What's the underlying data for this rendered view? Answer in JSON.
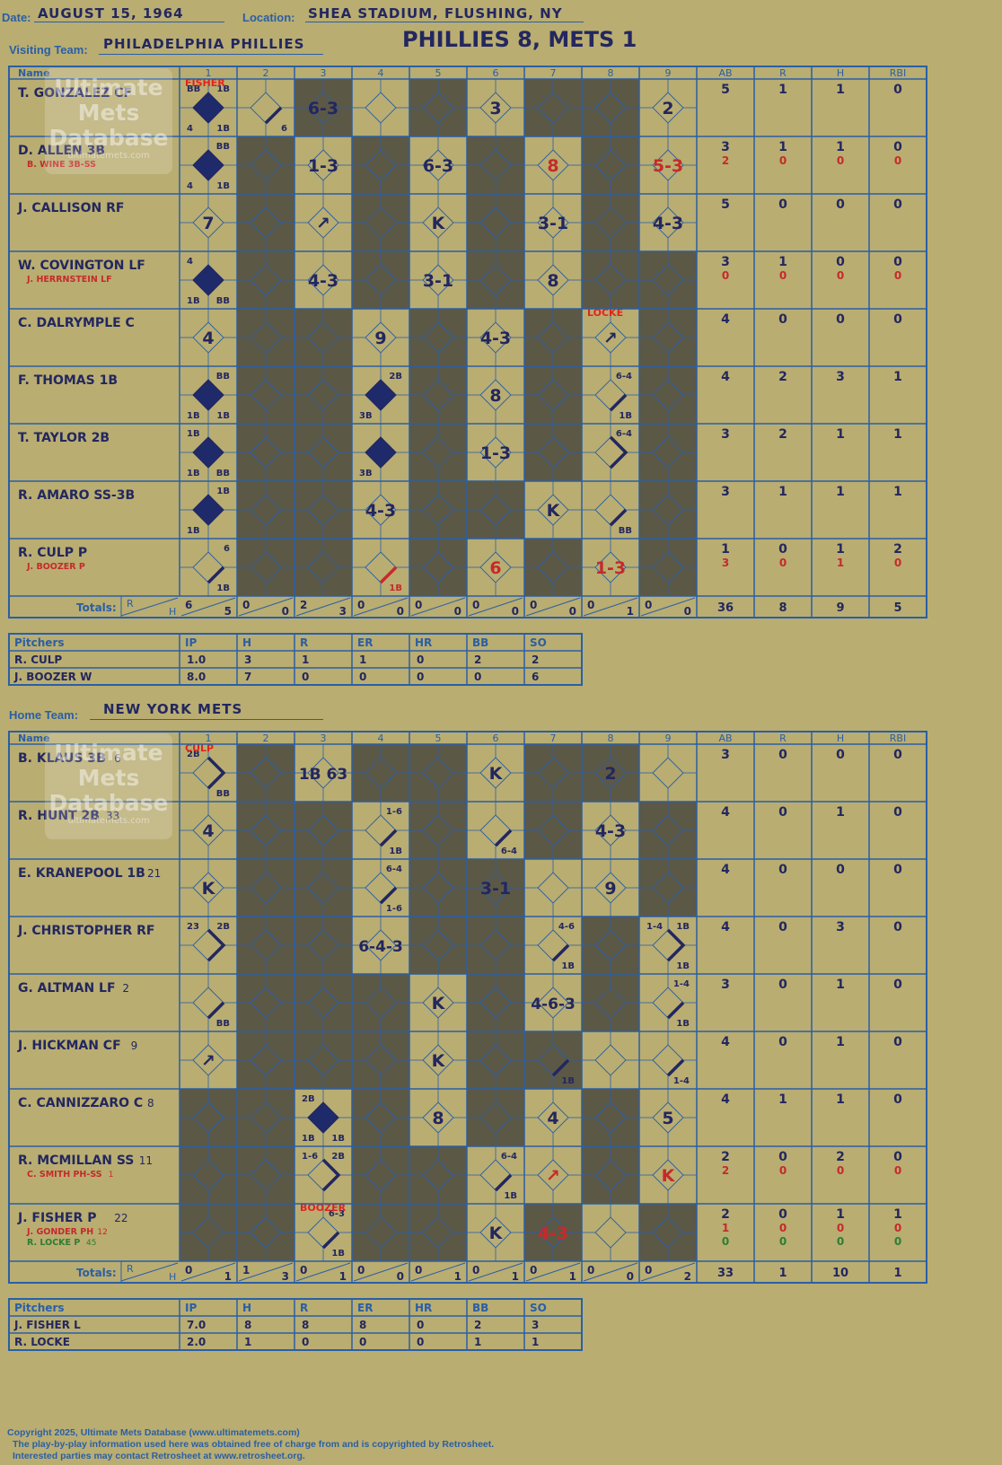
{
  "header": {
    "date_label": "Date:",
    "date": "AUGUST 15, 1964",
    "location_label": "Location:",
    "location": "SHEA STADIUM, FLUSHING, NY",
    "visiting_label": "Visiting Team:",
    "visiting_team": "PHILADELPHIA PHILLIES",
    "result": "PHILLIES 8, METS 1",
    "home_label": "Home Team:",
    "home_team": "NEW YORK METS"
  },
  "columns": {
    "name": "Name",
    "innings": [
      "1",
      "2",
      "3",
      "4",
      "5",
      "6",
      "7",
      "8",
      "9"
    ],
    "stats": [
      "AB",
      "R",
      "H",
      "RBI"
    ]
  },
  "pitcher_columns": [
    "Pitchers",
    "IP",
    "H",
    "R",
    "ER",
    "HR",
    "BB",
    "SO"
  ],
  "totals_label": "Totals:",
  "totals_r": "R",
  "totals_h": "H",
  "watermark": {
    "line1": "Ultimate",
    "line2": "Mets",
    "line3": "Database",
    "line4": "ultimatemets.com"
  },
  "colors": {
    "background": "#b9ad72",
    "grid": "#2a5fa5",
    "shade": "#5c5846",
    "ink": "#23275f",
    "red": "#c62a2a",
    "green": "#2e7d32"
  },
  "visitors": {
    "pitcher_changes": [
      {
        "inning": 1,
        "row": 0,
        "text": "FISHER"
      },
      {
        "inning": 8,
        "row": 4,
        "text": "LOCKE"
      }
    ],
    "batters": [
      {
        "name": "T. GONZALEZ CF",
        "subs": [],
        "stats": [
          [
            "5",
            "1",
            "1",
            "0"
          ]
        ],
        "cells": [
          {
            "inning": 1,
            "runner": 4,
            "marks": {
              "tl": "BB",
              "tr": "1B",
              "bl": "4",
              "br": "1B"
            }
          },
          {
            "inning": 2,
            "runner": 1,
            "marks": {
              "br": "6"
            }
          },
          {
            "inning": 3,
            "center": "6-3"
          },
          {
            "inning": 6,
            "center": "3"
          },
          {
            "inning": 9,
            "center": "2"
          }
        ]
      },
      {
        "name": "D. ALLEN 3B",
        "subs": [
          {
            "name": "B. WINE 3B-SS",
            "color": "red"
          }
        ],
        "stats": [
          [
            "3",
            "1",
            "1",
            "0"
          ],
          [
            "2",
            "0",
            "0",
            "0"
          ]
        ],
        "cells": [
          {
            "inning": 1,
            "runner": 4,
            "marks": {
              "tr": "BB",
              "bl": "4",
              "br": "1B"
            }
          },
          {
            "inning": 3,
            "center": "1-3"
          },
          {
            "inning": 5,
            "center": "6-3"
          },
          {
            "inning": 7,
            "center": "8",
            "red": true
          },
          {
            "inning": 9,
            "center": "5-3",
            "red": true
          }
        ]
      },
      {
        "name": "J. CALLISON RF",
        "subs": [],
        "stats": [
          [
            "5",
            "0",
            "0",
            "0"
          ]
        ],
        "cells": [
          {
            "inning": 1,
            "center": "7"
          },
          {
            "inning": 3,
            "center": "↗"
          },
          {
            "inning": 5,
            "center": "K"
          },
          {
            "inning": 7,
            "center": "3-1"
          },
          {
            "inning": 9,
            "center": "4-3"
          }
        ]
      },
      {
        "name": "W. COVINGTON LF",
        "subs": [
          {
            "name": "J. HERRNSTEIN LF",
            "color": "red"
          }
        ],
        "stats": [
          [
            "3",
            "1",
            "0",
            "0"
          ],
          [
            "0",
            "0",
            "0",
            "0"
          ]
        ],
        "cells": [
          {
            "inning": 1,
            "runner": 4,
            "marks": {
              "tl": "4",
              "bl": "1B",
              "br": "BB"
            }
          },
          {
            "inning": 3,
            "center": "4-3"
          },
          {
            "inning": 5,
            "center": "3-1"
          },
          {
            "inning": 7,
            "center": "8"
          }
        ]
      },
      {
        "name": "C. DALRYMPLE C",
        "subs": [],
        "stats": [
          [
            "4",
            "0",
            "0",
            "0"
          ]
        ],
        "cells": [
          {
            "inning": 1,
            "center": "4"
          },
          {
            "inning": 4,
            "center": "9"
          },
          {
            "inning": 6,
            "center": "4-3"
          },
          {
            "inning": 8,
            "center": "↗"
          }
        ]
      },
      {
        "name": "F. THOMAS 1B",
        "subs": [],
        "stats": [
          [
            "4",
            "2",
            "3",
            "1"
          ]
        ],
        "cells": [
          {
            "inning": 1,
            "runner": 4,
            "marks": {
              "tr": "BB",
              "bl": "1B",
              "br": "1B"
            }
          },
          {
            "inning": 4,
            "runner": 4,
            "marks": {
              "tr": "2B",
              "bl": "3B"
            }
          },
          {
            "inning": 6,
            "center": "8"
          },
          {
            "inning": 8,
            "runner": 1,
            "marks": {
              "tr": "6-4",
              "br": "1B"
            }
          }
        ]
      },
      {
        "name": "T. TAYLOR 2B",
        "subs": [],
        "stats": [
          [
            "3",
            "2",
            "1",
            "1"
          ]
        ],
        "cells": [
          {
            "inning": 1,
            "runner": 4,
            "marks": {
              "tl": "1B",
              "bl": "1B",
              "br": "BB"
            }
          },
          {
            "inning": 4,
            "runner": 4,
            "marks": {
              "bl": "3B"
            }
          },
          {
            "inning": 6,
            "center": "1-3"
          },
          {
            "inning": 8,
            "runner": 2,
            "marks": {
              "tr": "6-4"
            }
          }
        ]
      },
      {
        "name": "R. AMARO SS-3B",
        "subs": [],
        "stats": [
          [
            "3",
            "1",
            "1",
            "1"
          ]
        ],
        "cells": [
          {
            "inning": 1,
            "runner": 4,
            "marks": {
              "tr": "1B",
              "bl": "1B"
            }
          },
          {
            "inning": 4,
            "center": "4-3"
          },
          {
            "inning": 7,
            "center": "K"
          },
          {
            "inning": 8,
            "runner": 1,
            "marks": {
              "br": "BB"
            }
          }
        ]
      },
      {
        "name": "R. CULP P",
        "subs": [
          {
            "name": "J. BOOZER P",
            "color": "red"
          }
        ],
        "stats": [
          [
            "1",
            "0",
            "1",
            "2"
          ],
          [
            "3",
            "0",
            "1",
            "0"
          ]
        ],
        "cells": [
          {
            "inning": 1,
            "runner": 1,
            "marks": {
              "tr": "6",
              "br": "1B"
            }
          },
          {
            "inning": 4,
            "runner": 1,
            "red": true,
            "marks": {
              "br": "1B"
            }
          },
          {
            "inning": 6,
            "center": "6",
            "red": true
          },
          {
            "inning": 8,
            "center": "1-3",
            "red": true
          }
        ]
      }
    ],
    "shaded": [
      [
        0,
        0,
        1,
        0,
        1,
        0,
        1,
        1,
        0
      ],
      [
        0,
        1,
        0,
        1,
        0,
        1,
        0,
        1,
        0
      ],
      [
        0,
        1,
        0,
        1,
        0,
        1,
        0,
        1,
        0
      ],
      [
        0,
        1,
        0,
        1,
        0,
        1,
        0,
        1,
        1
      ],
      [
        0,
        1,
        1,
        0,
        1,
        0,
        1,
        0,
        1
      ],
      [
        0,
        1,
        1,
        0,
        1,
        0,
        1,
        0,
        1
      ],
      [
        0,
        1,
        1,
        0,
        1,
        0,
        1,
        0,
        1
      ],
      [
        0,
        1,
        1,
        0,
        1,
        1,
        0,
        0,
        1
      ],
      [
        0,
        1,
        1,
        0,
        1,
        0,
        1,
        0,
        1
      ]
    ],
    "totals": [
      [
        "6",
        "5"
      ],
      [
        "0",
        "0"
      ],
      [
        "2",
        "3"
      ],
      [
        "0",
        "0"
      ],
      [
        "0",
        "0"
      ],
      [
        "0",
        "0"
      ],
      [
        "0",
        "0"
      ],
      [
        "0",
        "1"
      ],
      [
        "0",
        "0"
      ]
    ],
    "totals_stats": [
      "36",
      "8",
      "9",
      "5"
    ],
    "pitchers": [
      {
        "name": "R. CULP",
        "vals": [
          "1.0",
          "3",
          "1",
          "1",
          "0",
          "2",
          "2"
        ]
      },
      {
        "name": "J. BOOZER W",
        "vals": [
          "8.0",
          "7",
          "0",
          "0",
          "0",
          "0",
          "6"
        ]
      }
    ]
  },
  "home": {
    "pitcher_changes": [
      {
        "inning": 1,
        "row": 0,
        "text": "CULP"
      },
      {
        "inning": 3,
        "row": 8,
        "text": "BOOZER"
      }
    ],
    "batters": [
      {
        "name": "B. KLAUS 3B",
        "num": "6",
        "subs": [],
        "stats": [
          [
            "3",
            "0",
            "0",
            "0"
          ]
        ],
        "cells": [
          {
            "inning": 1,
            "runner": 2,
            "marks": {
              "tl": "2B",
              "br": "BB"
            }
          },
          {
            "inning": 3,
            "center": "1B 63"
          },
          {
            "inning": 6,
            "center": "K"
          },
          {
            "inning": 8,
            "center": "2"
          }
        ]
      },
      {
        "name": "R. HUNT 2B",
        "num": "33",
        "subs": [],
        "stats": [
          [
            "4",
            "0",
            "1",
            "0"
          ]
        ],
        "cells": [
          {
            "inning": 1,
            "center": "4"
          },
          {
            "inning": 4,
            "runner": 1,
            "marks": {
              "tr": "1-6",
              "br": "1B"
            }
          },
          {
            "inning": 6,
            "runner": 1,
            "marks": {
              "br": "6-4"
            }
          },
          {
            "inning": 8,
            "center": "4-3"
          }
        ]
      },
      {
        "name": "E. KRANEPOOL 1B",
        "num": "21",
        "subs": [],
        "stats": [
          [
            "4",
            "0",
            "0",
            "0"
          ]
        ],
        "cells": [
          {
            "inning": 1,
            "center": "K"
          },
          {
            "inning": 4,
            "runner": 1,
            "marks": {
              "tr": "6-4",
              "br": "1-6"
            }
          },
          {
            "inning": 6,
            "center": "3-1"
          },
          {
            "inning": 8,
            "center": "9"
          }
        ]
      },
      {
        "name": "J. CHRISTOPHER RF",
        "num": "",
        "subs": [],
        "stats": [
          [
            "4",
            "0",
            "3",
            "0"
          ]
        ],
        "cells": [
          {
            "inning": 1,
            "runner": 2,
            "marks": {
              "tl": "23",
              "tr": "2B"
            }
          },
          {
            "inning": 4,
            "center": "6-4-3"
          },
          {
            "inning": 7,
            "runner": 1,
            "marks": {
              "tr": "4-6",
              "br": "1B"
            }
          },
          {
            "inning": 9,
            "runner": 2,
            "marks": {
              "tl": "1-4",
              "tr": "1B",
              "br": "1B"
            }
          }
        ]
      },
      {
        "name": "G. ALTMAN LF",
        "num": "2",
        "subs": [],
        "stats": [
          [
            "3",
            "0",
            "1",
            "0"
          ]
        ],
        "cells": [
          {
            "inning": 1,
            "runner": 1,
            "marks": {
              "br": "BB"
            }
          },
          {
            "inning": 5,
            "center": "K"
          },
          {
            "inning": 7,
            "center": "4-6-3"
          },
          {
            "inning": 9,
            "runner": 1,
            "marks": {
              "tr": "1-4",
              "br": "1B"
            }
          }
        ]
      },
      {
        "name": "J. HICKMAN CF",
        "num": "9",
        "subs": [],
        "stats": [
          [
            "4",
            "0",
            "1",
            "0"
          ]
        ],
        "cells": [
          {
            "inning": 1,
            "center": "↗"
          },
          {
            "inning": 5,
            "center": "K"
          },
          {
            "inning": 7,
            "runner": 1,
            "marks": {
              "br": "1B"
            }
          },
          {
            "inning": 9,
            "runner": 1,
            "marks": {
              "br": "1-4"
            }
          }
        ]
      },
      {
        "name": "C. CANNIZZARO C",
        "num": "8",
        "subs": [],
        "stats": [
          [
            "4",
            "1",
            "1",
            "0"
          ]
        ],
        "cells": [
          {
            "inning": 3,
            "runner": 4,
            "marks": {
              "tl": "2B",
              "bl": "1B",
              "br": "1B"
            }
          },
          {
            "inning": 5,
            "center": "8"
          },
          {
            "inning": 7,
            "center": "4"
          },
          {
            "inning": 9,
            "center": "5"
          }
        ]
      },
      {
        "name": "R. MCMILLAN SS",
        "num": "11",
        "subs": [
          {
            "name": "C. SMITH PH-SS",
            "num": "1",
            "color": "red"
          }
        ],
        "stats": [
          [
            "2",
            "0",
            "2",
            "0"
          ],
          [
            "2",
            "0",
            "0",
            "0"
          ]
        ],
        "cells": [
          {
            "inning": 3,
            "runner": 2,
            "marks": {
              "tl": "1-6",
              "tr": "2B"
            }
          },
          {
            "inning": 6,
            "runner": 1,
            "marks": {
              "tr": "6-4",
              "br": "1B"
            }
          },
          {
            "inning": 7,
            "center": "↗",
            "red": true
          },
          {
            "inning": 9,
            "center": "K",
            "red": true
          }
        ]
      },
      {
        "name": "J. FISHER P",
        "num": "22",
        "subs": [
          {
            "name": "J. GONDER PH",
            "num": "12",
            "color": "red"
          },
          {
            "name": "R. LOCKE P",
            "num": "45",
            "color": "green"
          }
        ],
        "stats": [
          [
            "2",
            "0",
            "1",
            "1"
          ],
          [
            "1",
            "0",
            "0",
            "0"
          ],
          [
            "0",
            "0",
            "0",
            "0"
          ]
        ],
        "cells": [
          {
            "inning": 3,
            "runner": 1,
            "marks": {
              "tr": "6-3",
              "br": "1B"
            }
          },
          {
            "inning": 6,
            "center": "K"
          },
          {
            "inning": 7,
            "center": "4-3",
            "red": true
          }
        ]
      }
    ],
    "shaded": [
      [
        0,
        1,
        0,
        1,
        1,
        0,
        1,
        1,
        0
      ],
      [
        0,
        1,
        1,
        0,
        1,
        0,
        1,
        0,
        1
      ],
      [
        0,
        1,
        1,
        0,
        1,
        1,
        0,
        0,
        1
      ],
      [
        0,
        1,
        1,
        0,
        1,
        1,
        0,
        1,
        0
      ],
      [
        0,
        1,
        1,
        1,
        0,
        1,
        0,
        1,
        0
      ],
      [
        0,
        1,
        1,
        1,
        0,
        1,
        1,
        0,
        0
      ],
      [
        1,
        1,
        0,
        1,
        0,
        1,
        0,
        1,
        0
      ],
      [
        1,
        1,
        0,
        1,
        1,
        0,
        0,
        1,
        0
      ],
      [
        1,
        1,
        0,
        1,
        1,
        0,
        1,
        0,
        1
      ]
    ],
    "totals": [
      [
        "0",
        "1"
      ],
      [
        "1",
        "3"
      ],
      [
        "0",
        "1"
      ],
      [
        "0",
        "0"
      ],
      [
        "0",
        "1"
      ],
      [
        "0",
        "1"
      ],
      [
        "0",
        "1"
      ],
      [
        "0",
        "0"
      ],
      [
        "0",
        "2"
      ]
    ],
    "totals_stats": [
      "33",
      "1",
      "10",
      "1"
    ],
    "pitchers": [
      {
        "name": "J. FISHER L",
        "vals": [
          "7.0",
          "8",
          "8",
          "8",
          "0",
          "2",
          "3"
        ]
      },
      {
        "name": "R. LOCKE",
        "vals": [
          "2.0",
          "1",
          "0",
          "0",
          "0",
          "1",
          "1"
        ]
      }
    ]
  },
  "footer": {
    "line1": "Copyright 2025, Ultimate Mets Database (www.ultimatemets.com)",
    "line2": "The play-by-play information used here was obtained free of charge from and is copyrighted by Retrosheet.",
    "line3": "Interested parties may contact Retrosheet at www.retrosheet.org."
  }
}
